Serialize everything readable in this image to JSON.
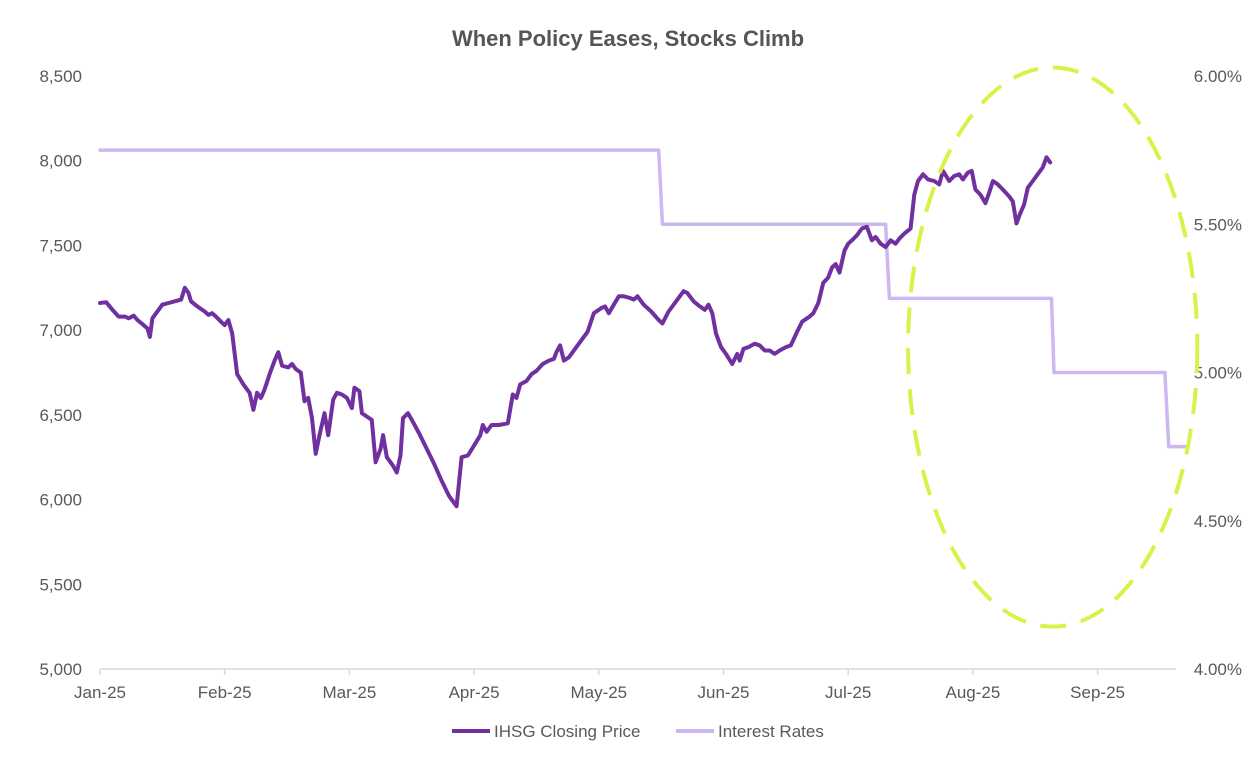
{
  "chart_data": {
    "type": "line",
    "title": "When Policy Eases, Stocks Climb",
    "x_labels": [
      "Jan-25",
      "Feb-25",
      "Mar-25",
      "Apr-25",
      "May-25",
      "Jun-25",
      "Jul-25",
      "Aug-25",
      "Sep-25"
    ],
    "y_left": {
      "min": 5000,
      "max": 8500,
      "step": 500,
      "ticks": [
        "5,000",
        "5,500",
        "6,000",
        "6,500",
        "7,000",
        "7,500",
        "8,000",
        "8,500"
      ]
    },
    "y_right": {
      "min": 4.0,
      "max": 6.0,
      "step": 0.5,
      "ticks": [
        "4.00%",
        "4.50%",
        "5.00%",
        "5.50%",
        "6.00%"
      ]
    },
    "legend": {
      "position": "bottom"
    },
    "annotation": {
      "type": "dashed-ellipse",
      "label": "",
      "color": "#d9f24a",
      "x_range": [
        6.48,
        8.8
      ],
      "y_left_range": [
        5250,
        8550
      ]
    },
    "series": [
      {
        "name": "IHSG Closing Price",
        "axis": "left",
        "color": "#7030a0",
        "points": [
          [
            0.0,
            7160
          ],
          [
            0.05,
            7165
          ],
          [
            0.1,
            7120
          ],
          [
            0.15,
            7080
          ],
          [
            0.2,
            7080
          ],
          [
            0.23,
            7070
          ],
          [
            0.27,
            7085
          ],
          [
            0.3,
            7060
          ],
          [
            0.35,
            7030
          ],
          [
            0.38,
            7010
          ],
          [
            0.4,
            6960
          ],
          [
            0.42,
            7070
          ],
          [
            0.45,
            7100
          ],
          [
            0.5,
            7150
          ],
          [
            0.55,
            7160
          ],
          [
            0.6,
            7170
          ],
          [
            0.65,
            7180
          ],
          [
            0.68,
            7250
          ],
          [
            0.71,
            7220
          ],
          [
            0.73,
            7170
          ],
          [
            0.78,
            7140
          ],
          [
            0.84,
            7110
          ],
          [
            0.87,
            7090
          ],
          [
            0.9,
            7100
          ],
          [
            0.93,
            7080
          ],
          [
            0.97,
            7050
          ],
          [
            1.0,
            7030
          ],
          [
            1.03,
            7060
          ],
          [
            1.06,
            6980
          ],
          [
            1.1,
            6740
          ],
          [
            1.15,
            6680
          ],
          [
            1.2,
            6630
          ],
          [
            1.23,
            6530
          ],
          [
            1.26,
            6630
          ],
          [
            1.29,
            6600
          ],
          [
            1.32,
            6650
          ],
          [
            1.36,
            6740
          ],
          [
            1.4,
            6820
          ],
          [
            1.43,
            6870
          ],
          [
            1.46,
            6790
          ],
          [
            1.51,
            6780
          ],
          [
            1.54,
            6800
          ],
          [
            1.57,
            6770
          ],
          [
            1.61,
            6750
          ],
          [
            1.64,
            6580
          ],
          [
            1.67,
            6600
          ],
          [
            1.7,
            6480
          ],
          [
            1.73,
            6270
          ],
          [
            1.76,
            6380
          ],
          [
            1.8,
            6510
          ],
          [
            1.83,
            6380
          ],
          [
            1.87,
            6590
          ],
          [
            1.9,
            6630
          ],
          [
            1.94,
            6620
          ],
          [
            1.98,
            6600
          ],
          [
            2.02,
            6540
          ],
          [
            2.04,
            6660
          ],
          [
            2.08,
            6640
          ],
          [
            2.1,
            6510
          ],
          [
            2.14,
            6490
          ],
          [
            2.18,
            6470
          ],
          [
            2.21,
            6220
          ],
          [
            2.25,
            6300
          ],
          [
            2.27,
            6380
          ],
          [
            2.3,
            6250
          ],
          [
            2.35,
            6200
          ],
          [
            2.38,
            6160
          ],
          [
            2.41,
            6260
          ],
          [
            2.43,
            6480
          ],
          [
            2.47,
            6510
          ],
          [
            2.5,
            6470
          ],
          [
            2.56,
            6390
          ],
          [
            2.62,
            6300
          ],
          [
            2.68,
            6210
          ],
          [
            2.74,
            6110
          ],
          [
            2.8,
            6020
          ],
          [
            2.86,
            5960
          ],
          [
            2.9,
            6250
          ],
          [
            2.95,
            6260
          ],
          [
            3.0,
            6320
          ],
          [
            3.05,
            6380
          ],
          [
            3.07,
            6440
          ],
          [
            3.1,
            6400
          ],
          [
            3.14,
            6440
          ],
          [
            3.2,
            6440
          ],
          [
            3.27,
            6450
          ],
          [
            3.31,
            6620
          ],
          [
            3.34,
            6600
          ],
          [
            3.37,
            6680
          ],
          [
            3.42,
            6700
          ],
          [
            3.46,
            6740
          ],
          [
            3.5,
            6760
          ],
          [
            3.55,
            6800
          ],
          [
            3.6,
            6820
          ],
          [
            3.64,
            6830
          ],
          [
            3.66,
            6870
          ],
          [
            3.69,
            6910
          ],
          [
            3.72,
            6820
          ],
          [
            3.76,
            6840
          ],
          [
            3.81,
            6890
          ],
          [
            3.86,
            6940
          ],
          [
            3.91,
            6990
          ],
          [
            3.96,
            7100
          ],
          [
            4.02,
            7130
          ],
          [
            4.05,
            7140
          ],
          [
            4.08,
            7100
          ],
          [
            4.12,
            7150
          ],
          [
            4.16,
            7200
          ],
          [
            4.2,
            7200
          ],
          [
            4.25,
            7190
          ],
          [
            4.28,
            7180
          ],
          [
            4.31,
            7200
          ],
          [
            4.36,
            7150
          ],
          [
            4.42,
            7110
          ],
          [
            4.48,
            7060
          ],
          [
            4.51,
            7040
          ],
          [
            4.56,
            7110
          ],
          [
            4.62,
            7170
          ],
          [
            4.68,
            7230
          ],
          [
            4.71,
            7220
          ],
          [
            4.76,
            7170
          ],
          [
            4.81,
            7140
          ],
          [
            4.85,
            7120
          ],
          [
            4.88,
            7150
          ],
          [
            4.91,
            7100
          ],
          [
            4.94,
            6980
          ],
          [
            4.98,
            6900
          ],
          [
            5.02,
            6860
          ],
          [
            5.07,
            6800
          ],
          [
            5.11,
            6860
          ],
          [
            5.13,
            6820
          ],
          [
            5.16,
            6890
          ],
          [
            5.2,
            6900
          ],
          [
            5.25,
            6920
          ],
          [
            5.29,
            6910
          ],
          [
            5.33,
            6880
          ],
          [
            5.37,
            6880
          ],
          [
            5.41,
            6860
          ],
          [
            5.45,
            6880
          ],
          [
            5.5,
            6900
          ],
          [
            5.54,
            6910
          ],
          [
            5.59,
            6990
          ],
          [
            5.63,
            7050
          ],
          [
            5.69,
            7080
          ],
          [
            5.72,
            7100
          ],
          [
            5.76,
            7160
          ],
          [
            5.8,
            7280
          ],
          [
            5.84,
            7310
          ],
          [
            5.87,
            7370
          ],
          [
            5.9,
            7390
          ],
          [
            5.93,
            7340
          ],
          [
            5.97,
            7470
          ],
          [
            6.0,
            7510
          ],
          [
            6.03,
            7530
          ],
          [
            6.07,
            7560
          ],
          [
            6.11,
            7600
          ],
          [
            6.15,
            7610
          ],
          [
            6.19,
            7530
          ],
          [
            6.22,
            7550
          ],
          [
            6.26,
            7510
          ],
          [
            6.3,
            7490
          ],
          [
            6.34,
            7530
          ],
          [
            6.38,
            7510
          ],
          [
            6.41,
            7540
          ],
          [
            6.45,
            7570
          ],
          [
            6.5,
            7600
          ],
          [
            6.53,
            7800
          ],
          [
            6.56,
            7880
          ],
          [
            6.6,
            7920
          ],
          [
            6.64,
            7890
          ],
          [
            6.69,
            7880
          ],
          [
            6.73,
            7860
          ],
          [
            6.76,
            7940
          ],
          [
            6.81,
            7880
          ],
          [
            6.85,
            7910
          ],
          [
            6.89,
            7920
          ],
          [
            6.92,
            7890
          ],
          [
            6.96,
            7930
          ],
          [
            6.99,
            7940
          ],
          [
            7.02,
            7830
          ],
          [
            7.06,
            7800
          ],
          [
            7.1,
            7750
          ],
          [
            7.13,
            7810
          ],
          [
            7.16,
            7880
          ],
          [
            7.2,
            7860
          ],
          [
            7.24,
            7830
          ],
          [
            7.29,
            7790
          ],
          [
            7.32,
            7760
          ],
          [
            7.35,
            7630
          ],
          [
            7.38,
            7690
          ],
          [
            7.41,
            7740
          ],
          [
            7.44,
            7840
          ],
          [
            7.48,
            7880
          ],
          [
            7.52,
            7920
          ],
          [
            7.56,
            7960
          ],
          [
            7.59,
            8020
          ],
          [
            7.62,
            7990
          ]
        ]
      },
      {
        "name": "Interest Rates",
        "axis": "right",
        "color": "#cdb7f0",
        "points": [
          [
            0.0,
            5.75
          ],
          [
            4.48,
            5.75
          ],
          [
            4.51,
            5.5
          ],
          [
            6.3,
            5.5
          ],
          [
            6.33,
            5.25
          ],
          [
            7.63,
            5.25
          ],
          [
            7.65,
            5.0
          ],
          [
            8.54,
            5.0
          ],
          [
            8.57,
            4.75
          ],
          [
            8.72,
            4.75
          ]
        ]
      }
    ]
  }
}
